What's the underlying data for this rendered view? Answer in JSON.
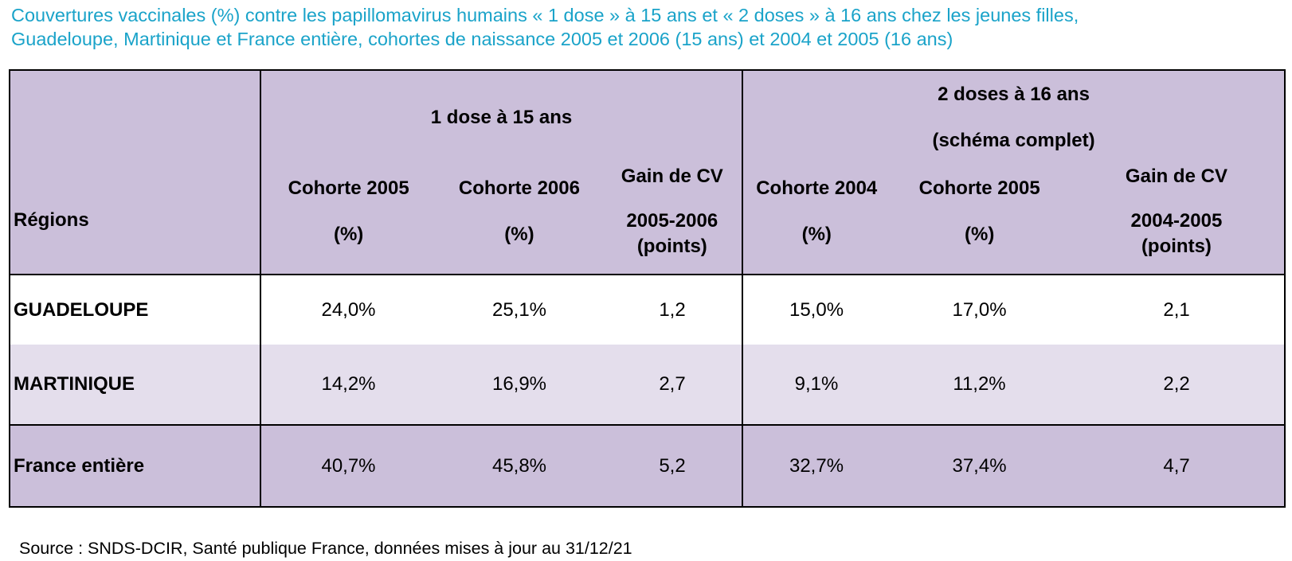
{
  "title": {
    "line1": "Couvertures vaccinales (%) contre les papillomavirus humains « 1 dose » à 15 ans et « 2 doses » à 16 ans chez les jeunes filles,",
    "line2": "Guadeloupe, Martinique et France entière, cohortes de naissance 2005 et 2006 (15 ans) et 2004 et 2005 (16 ans)"
  },
  "table": {
    "region_header": "Régions",
    "group1": {
      "title": "1 dose à 15 ans",
      "columns": [
        {
          "label": "Cohorte 2005",
          "sub": "(%)"
        },
        {
          "label": "Cohorte 2006",
          "sub": "(%)"
        },
        {
          "label": "Gain de CV",
          "sub1": "2005-2006",
          "sub2": "(points)"
        }
      ]
    },
    "group2": {
      "title": "2 doses à 16 ans",
      "subtitle": "(schéma complet)",
      "columns": [
        {
          "label": "Cohorte 2004",
          "sub": "(%)"
        },
        {
          "label": "Cohorte 2005",
          "sub": "(%)"
        },
        {
          "label": "Gain de CV",
          "sub1": "2004-2005",
          "sub2": "(points)"
        }
      ]
    },
    "rows": [
      {
        "region": "GUADELOUPE",
        "values": [
          "24,0%",
          "25,1%",
          "1,2",
          "15,0%",
          "17,0%",
          "2,1"
        ]
      },
      {
        "region": "MARTINIQUE",
        "values": [
          "14,2%",
          "16,9%",
          "2,7",
          "9,1%",
          "11,2%",
          "2,2"
        ]
      },
      {
        "region": "France entière",
        "values": [
          "40,7%",
          "45,8%",
          "5,2",
          "32,7%",
          "37,4%",
          "4,7"
        ]
      }
    ]
  },
  "source": "Source : SNDS-DCIR, Santé publique France, données mises à jour au 31/12/21",
  "colors": {
    "title": "#1aa3c9",
    "header_bg": "#cbbfda",
    "row_light_bg": "#e4deec",
    "row_white_bg": "#ffffff"
  }
}
